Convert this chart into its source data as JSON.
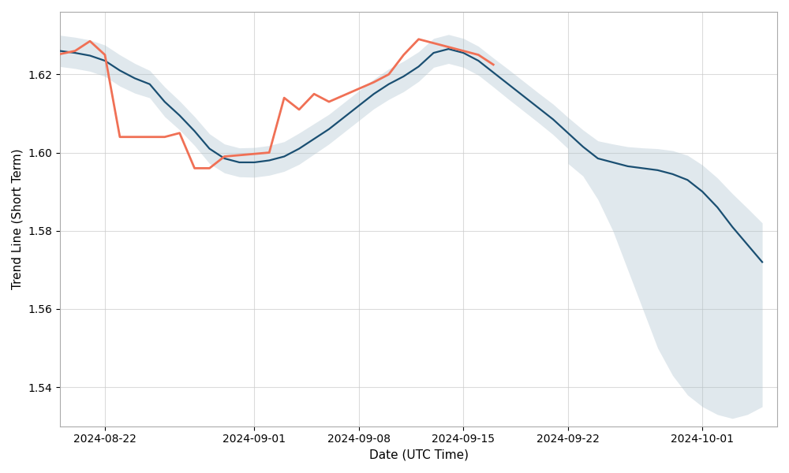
{
  "xlabel": "Date (UTC Time)",
  "ylabel": "Trend Line (Short Term)",
  "background_color": "#ffffff",
  "trend_color": "#1a4f72",
  "actual_color": "#f07055",
  "band_color": "#a8bfcc",
  "band_alpha": 0.35,
  "trend_linewidth": 1.6,
  "actual_linewidth": 2.0,
  "dates": [
    "2024-08-19",
    "2024-08-20",
    "2024-08-21",
    "2024-08-22",
    "2024-08-23",
    "2024-08-24",
    "2024-08-25",
    "2024-08-26",
    "2024-08-27",
    "2024-08-28",
    "2024-08-29",
    "2024-08-30",
    "2024-08-31",
    "2024-09-01",
    "2024-09-02",
    "2024-09-03",
    "2024-09-04",
    "2024-09-05",
    "2024-09-06",
    "2024-09-07",
    "2024-09-08",
    "2024-09-09",
    "2024-09-10",
    "2024-09-11",
    "2024-09-12",
    "2024-09-13",
    "2024-09-14",
    "2024-09-15",
    "2024-09-16",
    "2024-09-17",
    "2024-09-18",
    "2024-09-19",
    "2024-09-20",
    "2024-09-21",
    "2024-09-22",
    "2024-09-23",
    "2024-09-24",
    "2024-09-25",
    "2024-09-26",
    "2024-09-27",
    "2024-09-28",
    "2024-09-29",
    "2024-09-30",
    "2024-10-01",
    "2024-10-02",
    "2024-10-03",
    "2024-10-04",
    "2024-10-05"
  ],
  "trend_values": [
    1.626,
    1.6255,
    1.6248,
    1.6235,
    1.621,
    1.619,
    1.6175,
    1.613,
    1.6095,
    1.6055,
    1.601,
    1.5985,
    1.5975,
    1.5975,
    1.598,
    1.599,
    1.601,
    1.6035,
    1.606,
    1.609,
    1.612,
    1.615,
    1.6175,
    1.6195,
    1.622,
    1.6255,
    1.6265,
    1.6255,
    1.6235,
    1.6205,
    1.6175,
    1.6145,
    1.6115,
    1.6085,
    1.605,
    1.6015,
    1.5985,
    1.5975,
    1.5965,
    1.596,
    1.5955,
    1.5945,
    1.593,
    1.59,
    1.586,
    1.581,
    1.5765,
    1.572
  ],
  "trend_upper": [
    1.63,
    1.6295,
    1.6288,
    1.6275,
    1.625,
    1.6228,
    1.621,
    1.6168,
    1.6132,
    1.6092,
    1.6048,
    1.6022,
    1.6012,
    1.6013,
    1.6018,
    1.6028,
    1.605,
    1.6074,
    1.6098,
    1.6128,
    1.6158,
    1.6188,
    1.6214,
    1.6234,
    1.6258,
    1.6292,
    1.6302,
    1.6292,
    1.6272,
    1.6242,
    1.6213,
    1.6183,
    1.6153,
    1.6124,
    1.609,
    1.6058,
    1.603,
    1.6022,
    1.6015,
    1.6012,
    1.601,
    1.6005,
    1.5993,
    1.5968,
    1.5935,
    1.5895,
    1.5858,
    1.582
  ],
  "trend_lower": [
    1.622,
    1.6215,
    1.6208,
    1.6195,
    1.617,
    1.6152,
    1.614,
    1.6092,
    1.6058,
    1.6018,
    1.5972,
    1.5948,
    1.5938,
    1.5937,
    1.5942,
    1.5952,
    1.597,
    1.5996,
    1.6022,
    1.6052,
    1.6082,
    1.6112,
    1.6136,
    1.6156,
    1.6182,
    1.6218,
    1.6228,
    1.6218,
    1.6198,
    1.6168,
    1.6137,
    1.6107,
    1.6077,
    1.6046,
    1.601,
    1.5972,
    1.594,
    1.5928,
    1.5915,
    1.5908,
    1.59,
    1.5885,
    1.5867,
    1.5832,
    1.5785,
    1.5725,
    1.5672,
    1.5624
  ],
  "actual_dates": [
    "2024-08-19",
    "2024-08-20",
    "2024-08-21",
    "2024-08-22",
    "2024-08-23",
    "2024-08-26",
    "2024-08-27",
    "2024-08-28",
    "2024-08-29",
    "2024-08-30",
    "2024-09-02",
    "2024-09-03",
    "2024-09-04",
    "2024-09-05",
    "2024-09-06",
    "2024-09-09",
    "2024-09-10",
    "2024-09-11",
    "2024-09-12",
    "2024-09-13",
    "2024-09-16",
    "2024-09-17"
  ],
  "actual_values": [
    1.6252,
    1.626,
    1.6285,
    1.625,
    1.604,
    1.604,
    1.605,
    1.596,
    1.596,
    1.599,
    1.6,
    1.614,
    1.611,
    1.615,
    1.613,
    1.618,
    1.62,
    1.625,
    1.629,
    1.628,
    1.625,
    1.6225
  ],
  "ylim": [
    1.53,
    1.636
  ],
  "yticks": [
    1.54,
    1.56,
    1.58,
    1.6,
    1.62
  ],
  "xtick_dates": [
    "2024-08-22",
    "2024-09-01",
    "2024-09-08",
    "2024-09-15",
    "2024-09-22",
    "2024-10-01"
  ],
  "xlim_start": "2024-08-19",
  "xlim_end": "2024-10-06",
  "grid_color": "#cccccc",
  "grid_alpha": 0.7,
  "tick_labelsize": 10,
  "future_lower": [
    "2024-09-22",
    "2024-09-23",
    "2024-09-24",
    "2024-09-25",
    "2024-09-26",
    "2024-09-27",
    "2024-09-28",
    "2024-09-29",
    "2024-09-30",
    "2024-10-01",
    "2024-10-02",
    "2024-10-03",
    "2024-10-04",
    "2024-10-05"
  ],
  "future_lower_vals": [
    1.5972,
    1.594,
    1.588,
    1.58,
    1.57,
    1.56,
    1.55,
    1.543,
    1.538,
    1.535,
    1.533,
    1.532,
    1.533,
    1.535
  ],
  "future_upper_vals": [
    1.609,
    1.6058,
    1.603,
    1.6022,
    1.6015,
    1.6012,
    1.601,
    1.6005,
    1.5993,
    1.5968,
    1.5935,
    1.5895,
    1.5858,
    1.582
  ]
}
